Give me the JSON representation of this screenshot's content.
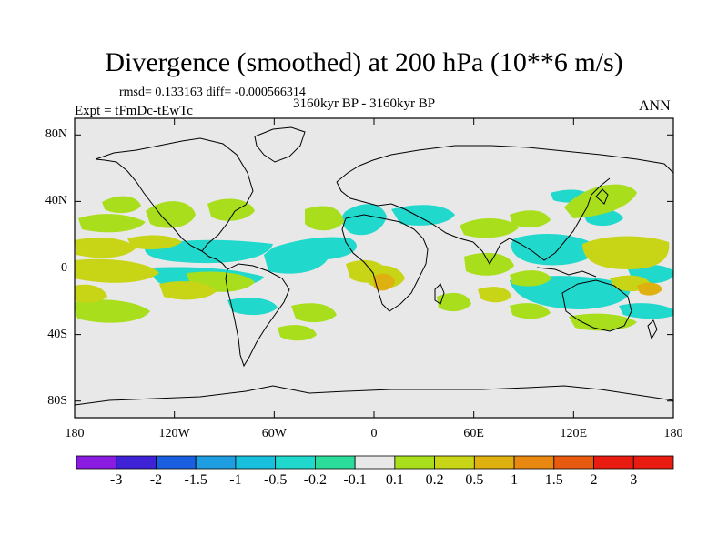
{
  "title": "Divergence (smoothed) at 200 hPa (10**6 m/s)",
  "stats": "rmsd= 0.133163  diff= -0.000566314",
  "period": "3160kyr BP - 3160kyr BP",
  "experiment": "Expt = tFmDc-tEwTc",
  "season": "ANN",
  "lat_labels": [
    "80N",
    "40N",
    "0",
    "40S",
    "80S"
  ],
  "lat_values": [
    80,
    40,
    0,
    -40,
    -80
  ],
  "lon_labels": [
    "180",
    "120W",
    "60W",
    "0",
    "60E",
    "120E",
    "180"
  ],
  "lon_values": [
    -180,
    -120,
    -60,
    0,
    60,
    120,
    180
  ],
  "colorbar": {
    "labels": [
      "-3",
      "-2",
      "-1.5",
      "-1",
      "-0.5",
      "-0.2",
      "-0.1",
      "0.1",
      "0.2",
      "0.5",
      "1",
      "1.5",
      "2",
      "3"
    ],
    "colors": [
      "#8a1be0",
      "#3d22d6",
      "#1a5fe0",
      "#1e9ee0",
      "#18c0de",
      "#20d8cc",
      "#2cdc9a",
      "#e8e8e8",
      "#a8de1c",
      "#c8d416",
      "#deb010",
      "#e88810",
      "#e85a10",
      "#e81c10"
    ]
  },
  "colors": {
    "background_no_data": "#e8e8e8",
    "coast": "#000000"
  }
}
